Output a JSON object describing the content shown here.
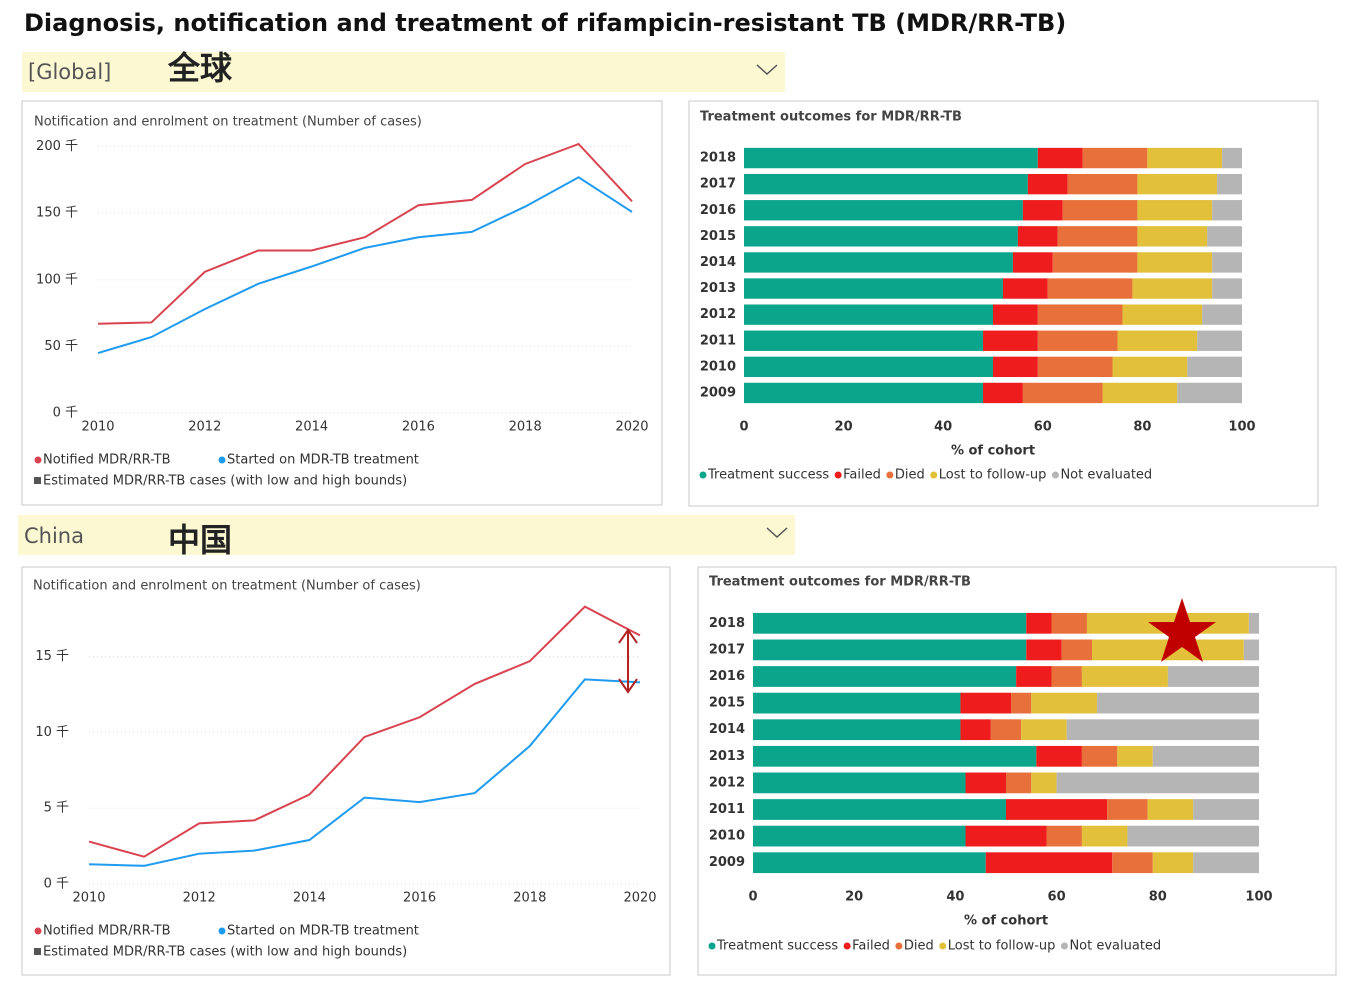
{
  "title": "Diagnosis, notification and treatment of rifampicin-resistant TB (MDR/RR-TB)",
  "sections": [
    {
      "filter": "[Global]",
      "label": "全球"
    },
    {
      "filter": "China",
      "label": "中国"
    }
  ],
  "chart_data": [
    {
      "type": "line",
      "title": "Notification and enrolment on treatment (Number of cases)",
      "x": [
        2010,
        2011,
        2012,
        2013,
        2014,
        2015,
        2016,
        2017,
        2018,
        2019,
        2020
      ],
      "xlim": [
        2010,
        2020
      ],
      "xticks": [
        2010,
        2012,
        2014,
        2016,
        2018,
        2020
      ],
      "ylim": [
        0,
        205
      ],
      "yticks": [
        {
          "value": 0,
          "label": "0 千"
        },
        {
          "value": 50,
          "label": "50 千"
        },
        {
          "value": 100,
          "label": "100 千"
        },
        {
          "value": 150,
          "label": "150 千"
        },
        {
          "value": 200,
          "label": "200 千"
        }
      ],
      "grid": true,
      "series": [
        {
          "name": "Notified MDR/RR-TB",
          "color": "#d9434f",
          "values": [
            67,
            68,
            106,
            122,
            122,
            132,
            156,
            160,
            187,
            202,
            159
          ]
        },
        {
          "name": "Started on MDR-TB treatment",
          "color": "#1f9bf0",
          "values": [
            45,
            57,
            78,
            97,
            110,
            124,
            132,
            136,
            155,
            177,
            151
          ]
        },
        {
          "name": "Estimated MDR/RR-TB cases (with low and high bounds)",
          "color": "#555555",
          "values": [
            null,
            null,
            null,
            null,
            null,
            null,
            null,
            null,
            null,
            null,
            null
          ]
        }
      ]
    },
    {
      "type": "bar",
      "orientation": "horizontal",
      "stacked": true,
      "title": "Treatment outcomes for MDR/RR-TB",
      "categories": [
        "2018",
        "2017",
        "2016",
        "2015",
        "2014",
        "2013",
        "2012",
        "2011",
        "2010",
        "2009"
      ],
      "xlabel": "% of cohort",
      "xlim": [
        0,
        100
      ],
      "xticks": [
        0,
        20,
        40,
        60,
        80,
        100
      ],
      "grid": false,
      "series": [
        {
          "name": "Treatment success",
          "color": "#0aa58a",
          "values": [
            59,
            57,
            56,
            55,
            54,
            52,
            50,
            48,
            50,
            48
          ]
        },
        {
          "name": "Failed",
          "color": "#ee1c1c",
          "values": [
            9,
            8,
            8,
            8,
            8,
            9,
            9,
            11,
            9,
            8
          ]
        },
        {
          "name": "Died",
          "color": "#e8703a",
          "values": [
            13,
            14,
            15,
            16,
            17,
            17,
            17,
            16,
            15,
            16
          ]
        },
        {
          "name": "Lost to follow-up",
          "color": "#e3c03a",
          "values": [
            15,
            16,
            15,
            14,
            15,
            16,
            16,
            16,
            15,
            15
          ]
        },
        {
          "name": "Not evaluated",
          "color": "#b5b5b5",
          "values": [
            4,
            5,
            6,
            7,
            6,
            6,
            8,
            9,
            11,
            13
          ]
        }
      ]
    },
    {
      "type": "line",
      "title": "Notification and enrolment on treatment (Number of cases)",
      "x": [
        2010,
        2011,
        2012,
        2013,
        2014,
        2015,
        2016,
        2017,
        2018,
        2019,
        2020
      ],
      "xlim": [
        2010,
        2020
      ],
      "xticks": [
        2010,
        2012,
        2014,
        2016,
        2018,
        2020
      ],
      "ylim": [
        0,
        19
      ],
      "yticks": [
        {
          "value": 0,
          "label": "0 千"
        },
        {
          "value": 5,
          "label": "5 千"
        },
        {
          "value": 10,
          "label": "10 千"
        },
        {
          "value": 15,
          "label": "15 千"
        }
      ],
      "grid": true,
      "series": [
        {
          "name": "Notified MDR/RR-TB",
          "color": "#d9434f",
          "values": [
            2.8,
            1.8,
            4.0,
            4.2,
            5.9,
            9.7,
            11.0,
            13.2,
            14.7,
            18.3,
            16.4
          ]
        },
        {
          "name": "Started on MDR-TB treatment",
          "color": "#1f9bf0",
          "values": [
            1.3,
            1.2,
            2.0,
            2.2,
            2.9,
            5.7,
            5.4,
            6.0,
            9.1,
            13.5,
            13.3
          ]
        },
        {
          "name": "Estimated MDR/RR-TB cases (with low and high bounds)",
          "color": "#555555",
          "values": [
            null,
            null,
            null,
            null,
            null,
            null,
            null,
            null,
            null,
            null,
            null
          ]
        }
      ]
    },
    {
      "type": "bar",
      "orientation": "horizontal",
      "stacked": true,
      "title": "Treatment outcomes for MDR/RR-TB",
      "categories": [
        "2018",
        "2017",
        "2016",
        "2015",
        "2014",
        "2013",
        "2012",
        "2011",
        "2010",
        "2009"
      ],
      "xlabel": "% of cohort",
      "xlim": [
        0,
        100
      ],
      "xticks": [
        0,
        20,
        40,
        60,
        80,
        100
      ],
      "grid": false,
      "series": [
        {
          "name": "Treatment success",
          "color": "#0aa58a",
          "values": [
            54,
            54,
            52,
            41,
            41,
            56,
            42,
            50,
            42,
            46
          ]
        },
        {
          "name": "Failed",
          "color": "#ee1c1c",
          "values": [
            5,
            7,
            7,
            10,
            6,
            9,
            8,
            20,
            16,
            25
          ]
        },
        {
          "name": "Died",
          "color": "#e8703a",
          "values": [
            7,
            6,
            6,
            4,
            6,
            7,
            5,
            8,
            7,
            8
          ]
        },
        {
          "name": "Lost to follow-up",
          "color": "#e3c03a",
          "values": [
            32,
            30,
            17,
            13,
            9,
            7,
            5,
            9,
            9,
            8
          ]
        },
        {
          "name": "Not evaluated",
          "color": "#b5b5b5",
          "values": [
            2,
            3,
            18,
            32,
            38,
            21,
            40,
            13,
            26,
            13
          ]
        }
      ]
    }
  ]
}
